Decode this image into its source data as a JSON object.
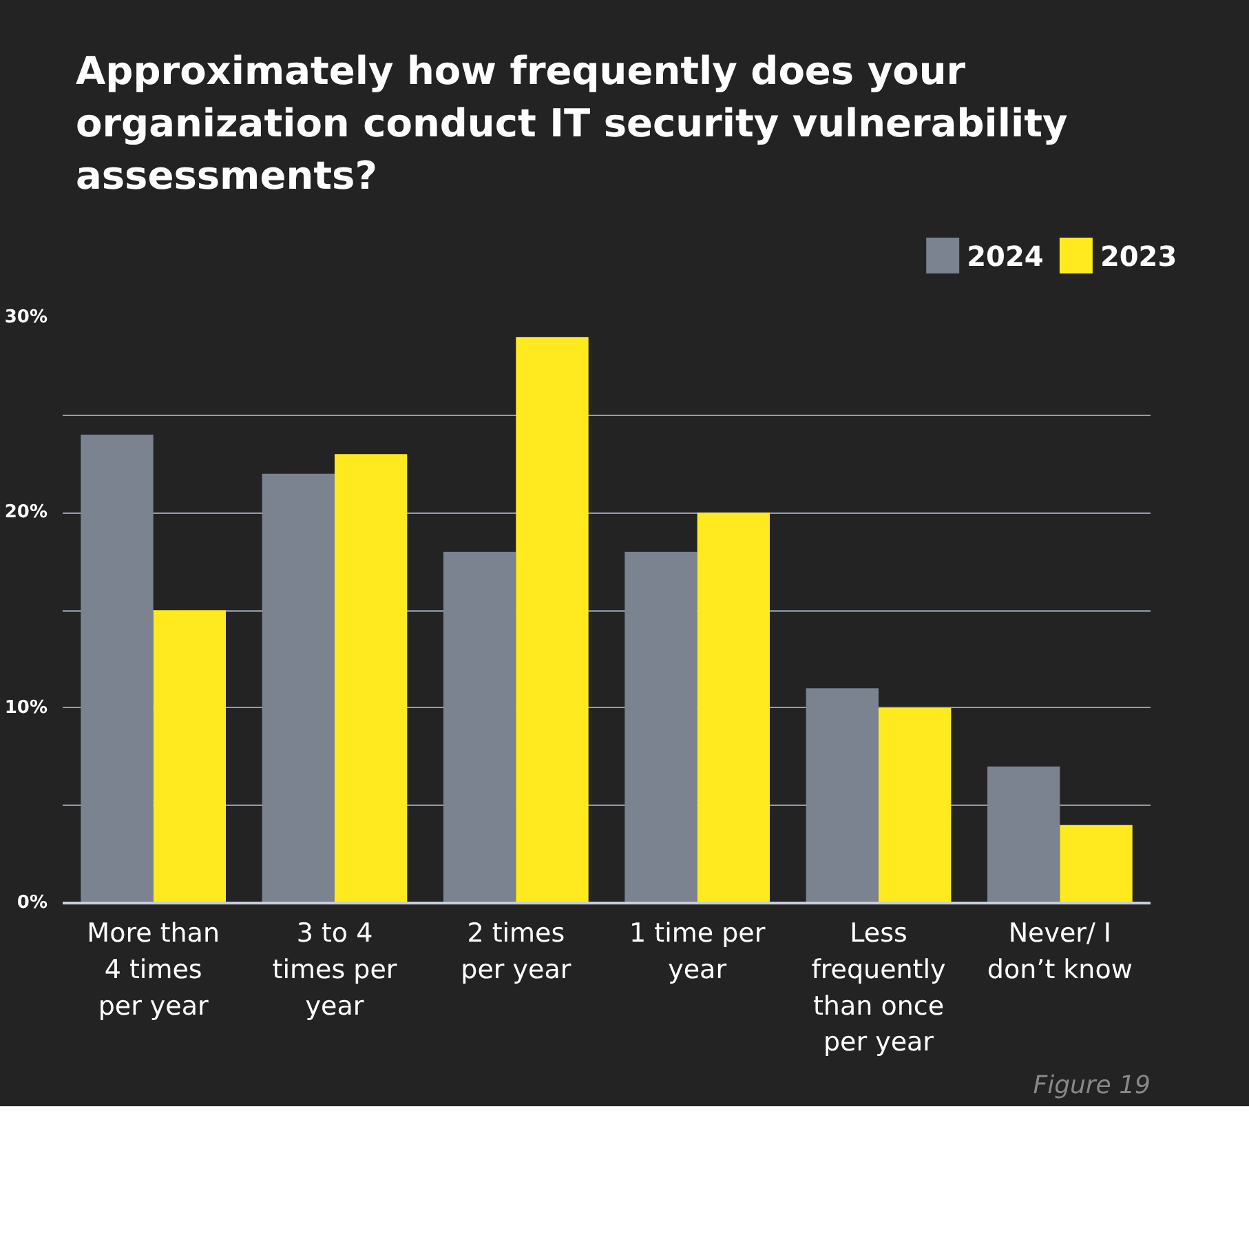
{
  "chart_data": {
    "type": "bar",
    "title": "Approximately how frequently does your organization conduct IT security vulnerability assessments?",
    "categories": [
      "More than 4 times per year",
      "3 to 4 times per year",
      "2 times per year",
      "1 time per year",
      "Less frequently than once per year",
      "Never/ I don’t know"
    ],
    "series": [
      {
        "name": "2024",
        "color": "#7b8391",
        "values": [
          24,
          22,
          18,
          18,
          11,
          7
        ]
      },
      {
        "name": "2023",
        "color": "#ffea1f",
        "values": [
          15,
          23,
          29,
          20,
          10,
          4
        ]
      }
    ],
    "ylim": [
      0,
      30
    ],
    "yticks": [
      {
        "value": 0,
        "label": "0%"
      },
      {
        "value": 5,
        "label": null
      },
      {
        "value": 10,
        "label": "10%"
      },
      {
        "value": 15,
        "label": null
      },
      {
        "value": 20,
        "label": "20%"
      },
      {
        "value": 25,
        "label": null
      },
      {
        "value": 30,
        "label": "30%"
      }
    ],
    "grid": "y",
    "legend": "top right",
    "annotations": [
      "Figure 19"
    ]
  }
}
